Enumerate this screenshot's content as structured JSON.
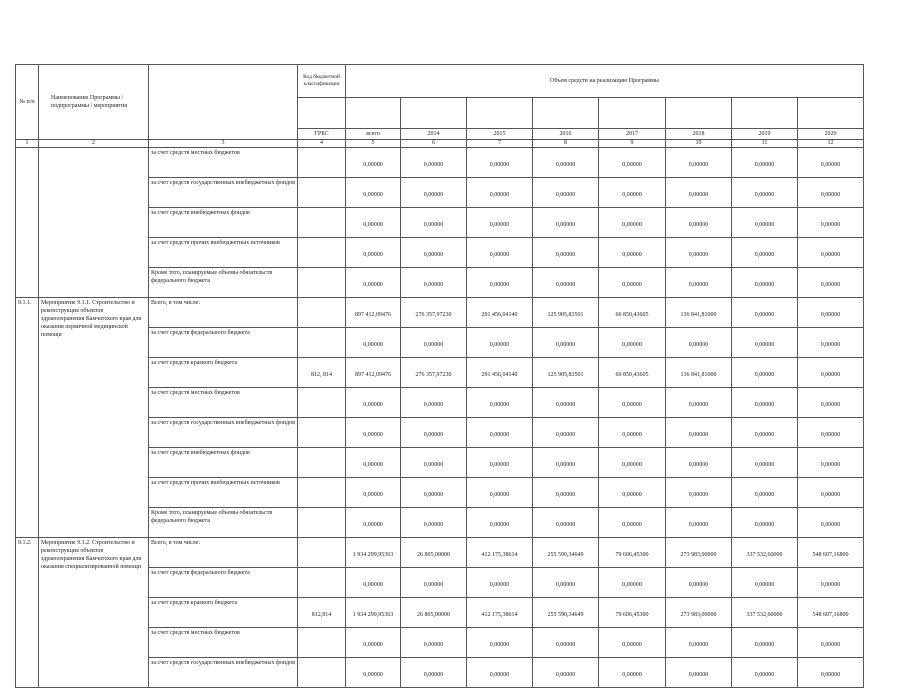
{
  "header": {
    "col_num": "№ п/п",
    "col_name": "Наименование Программы / подпрограммы / мероприятия",
    "col_code": "Код бюджетной классификации",
    "col_volume": "Объем средств на реализацию Программы",
    "grbs": "ГРБС",
    "total": "всего",
    "years": [
      "2014",
      "2015",
      "2016",
      "2017",
      "2018",
      "2019",
      "2020"
    ],
    "col_numbers": [
      "1",
      "2",
      "3",
      "4",
      "5",
      "6",
      "7",
      "8",
      "9",
      "10",
      "11",
      "12"
    ]
  },
  "groups": [
    {
      "num": "",
      "name": "",
      "rows": [
        {
          "source": "за счет средств местных бюджетов",
          "grbs": "",
          "values": [
            "0,00000",
            "0,00000",
            "0,00000",
            "0,00000",
            "0,00000",
            "0,00000",
            "0,00000",
            "0,00000"
          ]
        },
        {
          "source": "за счет средств государственных внебюджетных фондов",
          "grbs": "",
          "values": [
            "0,00000",
            "0,00000",
            "0,00000",
            "0,00000",
            "0,00000",
            "0,00000",
            "0,00000",
            "0,00000"
          ]
        },
        {
          "source": "за счет средств внебюджетных фондов",
          "grbs": "",
          "values": [
            "0,00000",
            "0,00000",
            "0,00000",
            "0,00000",
            "0,00000",
            "0,00000",
            "0,00000",
            "0,00000"
          ]
        },
        {
          "source": "за счет средств прочих внебюджетных источников",
          "grbs": "",
          "values": [
            "0,00000",
            "0,00000",
            "0,00000",
            "0,00000",
            "0,00000",
            "0,00000",
            "0,00000",
            "0,00000"
          ]
        },
        {
          "source": "Кроме того, планируемые объемы обязательств федерального бюджета",
          "grbs": "",
          "values": [
            "0,00000",
            "0,00000",
            "0,00000",
            "0,00000",
            "0,00000",
            "0,00000",
            "0,00000",
            "0,00000"
          ]
        }
      ]
    },
    {
      "num": "9.1.1.",
      "name": "Мероприятие 9.1.1. Строительство и реконструкция объектов здравоохранения Камчатского края для оказания первичной медицинской помощи",
      "rows": [
        {
          "source": "Всего, в том числе:",
          "grbs": "",
          "values": [
            "897 412,09476",
            "276 357,97230",
            "291 456,04140",
            "125 905,83501",
            "66 850,43605",
            "136 841,81000",
            "0,00000",
            "0,00000"
          ]
        },
        {
          "source": "за счет средств федерального бюджета",
          "grbs": "",
          "values": [
            "0,00000",
            "0,00000",
            "0,00000",
            "0,00000",
            "0,00000",
            "0,00000",
            "0,00000",
            "0,00000"
          ]
        },
        {
          "source": "за счет средств краевого бюджета",
          "grbs": "812, 814",
          "values": [
            "897 412,09476",
            "276 357,97230",
            "291 456,04140",
            "125 905,83501",
            "66 850,43605",
            "136 841,81000",
            "0,00000",
            "0,00000"
          ]
        },
        {
          "source": "за счет средств местных бюджетов",
          "grbs": "",
          "values": [
            "0,00000",
            "0,00000",
            "0,00000",
            "0,00000",
            "0,00000",
            "0,00000",
            "0,00000",
            "0,00000"
          ]
        },
        {
          "source": "за счет средств государственных внебюджетных фондов",
          "grbs": "",
          "values": [
            "0,00000",
            "0,00000",
            "0,00000",
            "0,00000",
            "0,00000",
            "0,00000",
            "0,00000",
            "0,00000"
          ]
        },
        {
          "source": "за счет средств внебюджетных фондов",
          "grbs": "",
          "values": [
            "0,00000",
            "0,00000",
            "0,00000",
            "0,00000",
            "0,00000",
            "0,00000",
            "0,00000",
            "0,00000"
          ]
        },
        {
          "source": "за счет средств прочих внебюджетных источников",
          "grbs": "",
          "values": [
            "0,00000",
            "0,00000",
            "0,00000",
            "0,00000",
            "0,00000",
            "0,00000",
            "0,00000",
            "0,00000"
          ]
        },
        {
          "source": "Кроме того, планируемые объемы обязательств федерального бюджета",
          "grbs": "",
          "values": [
            "0,00000",
            "0,00000",
            "0,00000",
            "0,00000",
            "0,00000",
            "0,00000",
            "0,00000",
            "0,00000"
          ]
        }
      ]
    },
    {
      "num": "9.1.2.",
      "name": "Мероприятие 9.1.2. Строительство и реконструкция объектов здравоохранения Камчатского края для оказания специализированной помощи",
      "rows": [
        {
          "source": "Всего, в том числе:",
          "grbs": "",
          "values": [
            "1 934 299,95363",
            "26 805,00000",
            "412 175,38614",
            "255 590,34649",
            "79 606,45300",
            "273 983,00000",
            "337 532,60000",
            "548 607,16800"
          ]
        },
        {
          "source": "за счет средств федерального бюджета",
          "grbs": "",
          "values": [
            "0,00000",
            "0,00000",
            "0,00000",
            "0,00000",
            "0,00000",
            "0,00000",
            "0,00000",
            "0,00000"
          ]
        },
        {
          "source": "за счет средств краевого бюджета",
          "grbs": "812,814",
          "values": [
            "1 934 299,95363",
            "26 805,00000",
            "412 175,38614",
            "255 590,34649",
            "79 606,45300",
            "273 983,00000",
            "337 532,60000",
            "548 607,16800"
          ]
        },
        {
          "source": "за счет средств местных бюджетов",
          "grbs": "",
          "values": [
            "0,00000",
            "0,00000",
            "0,00000",
            "0,00000",
            "0,00000",
            "0,00000",
            "0,00000",
            "0,00000"
          ]
        },
        {
          "source": "за счет средств государственных внебюджетных фондов",
          "grbs": "",
          "values": [
            "0,00000",
            "0,00000",
            "0,00000",
            "0,00000",
            "0,00000",
            "0,00000",
            "0,00000",
            "0,00000"
          ]
        }
      ]
    }
  ]
}
